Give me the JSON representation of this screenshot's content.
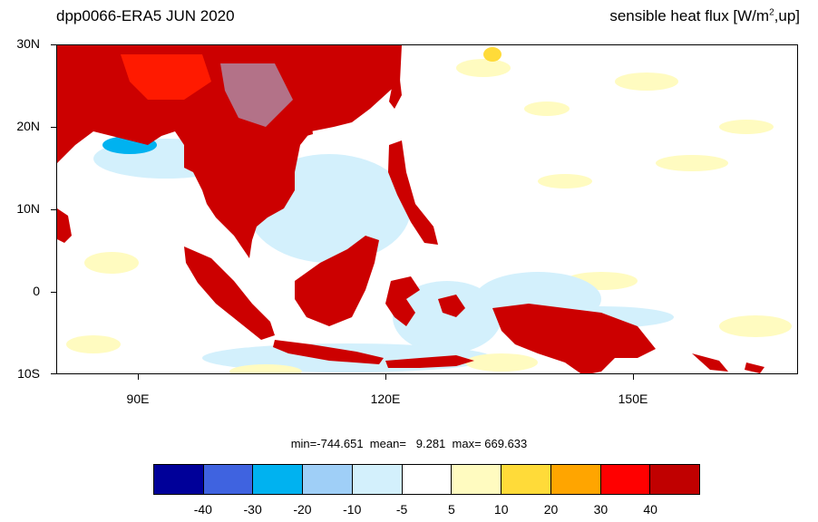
{
  "title_left": "dpp0066-ERA5  JUN 2020",
  "title_right_main": "sensible heat flux [W/m",
  "title_right_sup": "2",
  "title_right_tail": ",up]",
  "lat_labels": [
    "30N",
    "20N",
    "10N",
    "0",
    "10S"
  ],
  "lon_labels": [
    "90E",
    "120E",
    "150E"
  ],
  "stats": "min=-744.651  mean=   9.281  max= 669.633",
  "colorbar": {
    "colors": [
      "#000099",
      "#3f63e0",
      "#00b2f0",
      "#9fcff7",
      "#d3f0fc",
      "#ffffff",
      "#fffbc0",
      "#ffdb39",
      "#ffa500",
      "#ff0000",
      "#c00000"
    ],
    "labels": [
      "-40",
      "-30",
      "-20",
      "-10",
      "-5",
      "5",
      "10",
      "20",
      "30",
      "40"
    ]
  },
  "colors": {
    "land_hot": "#cc0000",
    "land_warm": "#ff1a00",
    "sea_cool": "#d3f0fc",
    "sea_cooler": "#9fcff7",
    "sea_coldest": "#00b2f0",
    "sea_pale_yellow": "#fffbc0",
    "sea_yellow": "#ffdb39"
  }
}
